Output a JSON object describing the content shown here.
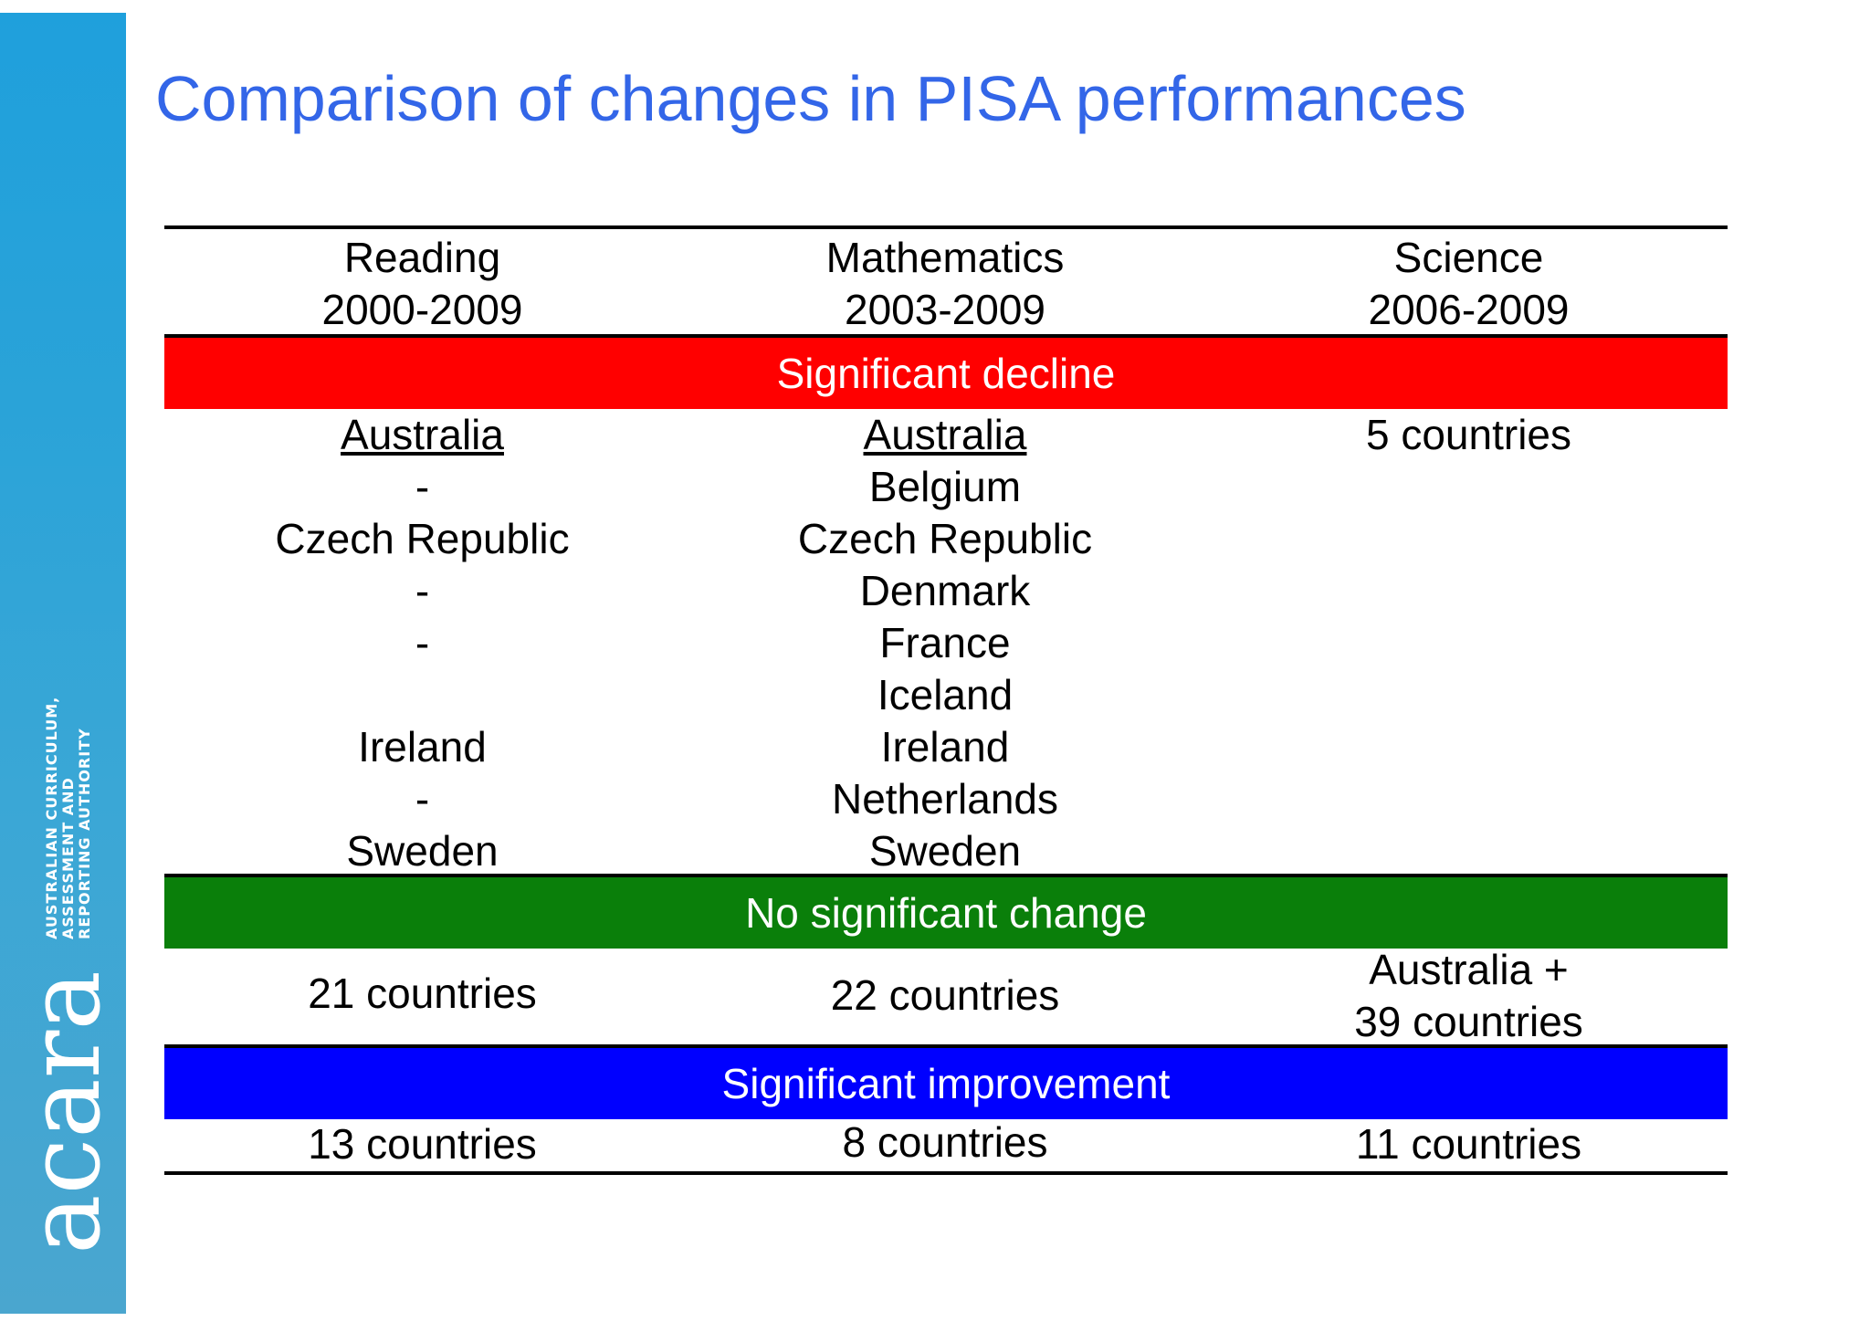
{
  "sidebar": {
    "logo_text": "acara",
    "tagline": [
      "AUSTRALIAN CURRICULUM,",
      "ASSESSMENT AND",
      "REPORTING AUTHORITY"
    ]
  },
  "title": "Comparison of changes in PISA performances",
  "headers": [
    {
      "subject": "Reading",
      "period": "2000-2009"
    },
    {
      "subject": "Mathematics",
      "period": "2003-2009"
    },
    {
      "subject": "Science",
      "period": "2006-2009"
    }
  ],
  "bands": {
    "decline": "Significant decline",
    "no_change": "No significant change",
    "improvement": "Significant improvement"
  },
  "colors": {
    "decline": "#ff0000",
    "no_change": "#0a7f0a",
    "improvement": "#0000ff",
    "title": "#3366e8"
  },
  "decline": {
    "reading": [
      "Australia",
      "-",
      "Czech Republic",
      "-",
      "-",
      "",
      "Ireland",
      "-",
      "Sweden"
    ],
    "mathematics": [
      "Australia",
      "Belgium",
      "Czech Republic",
      "Denmark",
      "France",
      "Iceland",
      "Ireland",
      "Netherlands",
      "Sweden"
    ],
    "science": [
      "5 countries"
    ]
  },
  "no_change": {
    "reading": "21 countries",
    "mathematics": "22 countries",
    "science": [
      "Australia +",
      "39 countries"
    ]
  },
  "improvement": {
    "reading": "13 countries",
    "mathematics": "8 countries",
    "science": "11 countries"
  }
}
